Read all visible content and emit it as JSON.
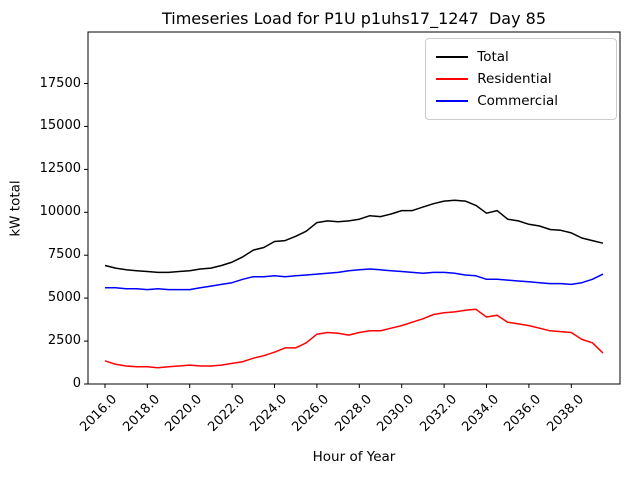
{
  "chart_data": {
    "type": "line",
    "title": "Timeseries Load for P1U p1uhs17_1247  Day 85",
    "xlabel": "Hour of Year",
    "ylabel": "kW total",
    "xlim": [
      2015.2,
      2040.3
    ],
    "ylim": [
      0,
      20500
    ],
    "grid": false,
    "legend_position": "upper right",
    "xticks": [
      2016,
      2018,
      2020,
      2022,
      2024,
      2026,
      2028,
      2030,
      2032,
      2034,
      2036,
      2038
    ],
    "xtick_labels": [
      "2016.0",
      "2018.0",
      "2020.0",
      "2022.0",
      "2024.0",
      "2026.0",
      "2028.0",
      "2030.0",
      "2032.0",
      "2034.0",
      "2036.0",
      "2038.0"
    ],
    "yticks": [
      0,
      2500,
      5000,
      7500,
      10000,
      12500,
      15000,
      17500
    ],
    "ytick_labels": [
      "0",
      "2500",
      "5000",
      "7500",
      "10000",
      "12500",
      "15000",
      "17500"
    ],
    "x": [
      2016.0,
      2016.5,
      2017.0,
      2017.5,
      2018.0,
      2018.5,
      2019.0,
      2019.5,
      2020.0,
      2020.5,
      2021.0,
      2021.5,
      2022.0,
      2022.5,
      2023.0,
      2023.5,
      2024.0,
      2024.5,
      2025.0,
      2025.5,
      2026.0,
      2026.5,
      2027.0,
      2027.5,
      2028.0,
      2028.5,
      2029.0,
      2029.5,
      2030.0,
      2030.5,
      2031.0,
      2031.5,
      2032.0,
      2032.5,
      2033.0,
      2033.5,
      2034.0,
      2034.5,
      2035.0,
      2035.5,
      2036.0,
      2036.5,
      2037.0,
      2037.5,
      2038.0,
      2038.5,
      2039.0,
      2039.5
    ],
    "series": [
      {
        "name": "Total",
        "color": "#000000",
        "values": [
          6900,
          6750,
          6650,
          6600,
          6550,
          6500,
          6500,
          6550,
          6600,
          6700,
          6750,
          6900,
          7100,
          7400,
          7800,
          7950,
          8300,
          8350,
          8600,
          8900,
          9400,
          9500,
          9450,
          9500,
          9600,
          9800,
          9750,
          9900,
          10100,
          10100,
          10300,
          10500,
          10650,
          10700,
          10650,
          10400,
          9950,
          10100,
          9600,
          9500,
          9300,
          9200,
          9000,
          8950,
          8800,
          8500,
          8350,
          8200
        ]
      },
      {
        "name": "Residential",
        "color": "#ff0000",
        "values": [
          1350,
          1150,
          1050,
          1000,
          1000,
          950,
          1000,
          1050,
          1100,
          1050,
          1050,
          1100,
          1200,
          1300,
          1500,
          1650,
          1850,
          2100,
          2100,
          2400,
          2900,
          3000,
          2950,
          2850,
          3000,
          3100,
          3100,
          3250,
          3400,
          3600,
          3800,
          4050,
          4150,
          4200,
          4300,
          4350,
          3900,
          4000,
          3600,
          3500,
          3400,
          3250,
          3100,
          3050,
          3000,
          2600,
          2400,
          1800
        ]
      },
      {
        "name": "Commercial",
        "color": "#0000ff",
        "values": [
          5600,
          5600,
          5550,
          5550,
          5500,
          5550,
          5500,
          5500,
          5500,
          5600,
          5700,
          5800,
          5900,
          6100,
          6250,
          6250,
          6300,
          6250,
          6300,
          6350,
          6400,
          6450,
          6500,
          6600,
          6650,
          6700,
          6650,
          6600,
          6550,
          6500,
          6450,
          6500,
          6500,
          6450,
          6350,
          6300,
          6100,
          6100,
          6050,
          6000,
          5950,
          5900,
          5850,
          5850,
          5800,
          5900,
          6100,
          6400
        ]
      }
    ]
  }
}
